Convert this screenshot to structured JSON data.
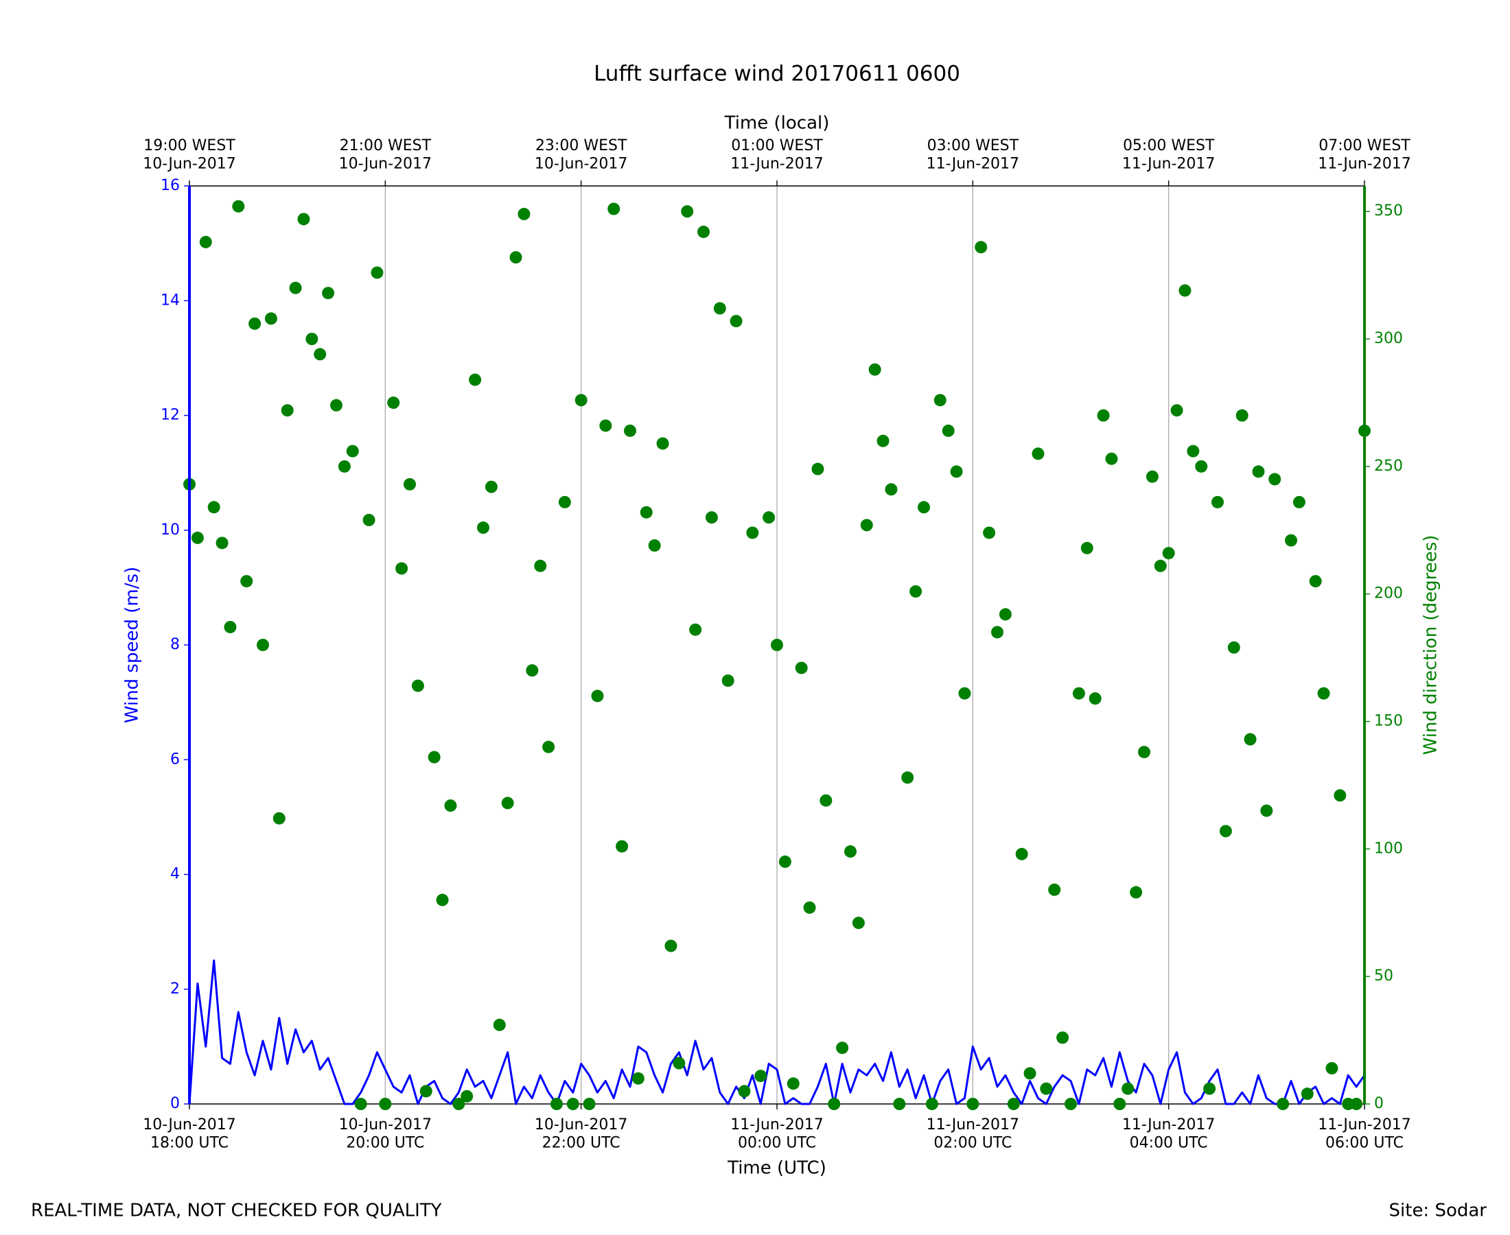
{
  "chart_data": {
    "type": "line+scatter",
    "title": "Lufft surface wind 20170611 0600",
    "xlabel": "Time (UTC)",
    "x2label": "Time (local)",
    "ylabel": "Wind speed (m/s)",
    "y2label": "Wind direction (degrees)",
    "footer_left": "REAL-TIME DATA, NOT CHECKED FOR QUALITY",
    "footer_right": "Site: Sodar",
    "xlim": [
      "2017-06-10T18:00",
      "2017-06-11T06:00"
    ],
    "xticks": [
      {
        "value": "2017-06-10T18:00",
        "label": "10-Jun-2017\n18:00 UTC"
      },
      {
        "value": "2017-06-10T20:00",
        "label": "10-Jun-2017\n20:00 UTC"
      },
      {
        "value": "2017-06-10T22:00",
        "label": "10-Jun-2017\n22:00 UTC"
      },
      {
        "value": "2017-06-11T00:00",
        "label": "11-Jun-2017\n00:00 UTC"
      },
      {
        "value": "2017-06-11T02:00",
        "label": "11-Jun-2017\n02:00 UTC"
      },
      {
        "value": "2017-06-11T04:00",
        "label": "11-Jun-2017\n04:00 UTC"
      },
      {
        "value": "2017-06-11T06:00",
        "label": "11-Jun-2017\n06:00 UTC"
      }
    ],
    "x2ticks": [
      {
        "value": "2017-06-10T18:00",
        "label": "19:00 WEST\n10-Jun-2017"
      },
      {
        "value": "2017-06-10T20:00",
        "label": "21:00 WEST\n10-Jun-2017"
      },
      {
        "value": "2017-06-10T22:00",
        "label": "23:00 WEST\n10-Jun-2017"
      },
      {
        "value": "2017-06-11T00:00",
        "label": "01:00 WEST\n11-Jun-2017"
      },
      {
        "value": "2017-06-11T02:00",
        "label": "03:00 WEST\n11-Jun-2017"
      },
      {
        "value": "2017-06-11T04:00",
        "label": "05:00 WEST\n11-Jun-2017"
      },
      {
        "value": "2017-06-11T06:00",
        "label": "07:00 WEST\n11-Jun-2017"
      }
    ],
    "ylim": [
      0,
      16
    ],
    "yticks": [
      0,
      2,
      4,
      6,
      8,
      10,
      12,
      14,
      16
    ],
    "y2lim": [
      0,
      360
    ],
    "y2ticks": [
      0,
      50,
      100,
      150,
      200,
      250,
      300,
      350
    ],
    "grid": true,
    "x": [
      "2017-06-10T18:00",
      "2017-06-10T18:05",
      "2017-06-10T18:10",
      "2017-06-10T18:15",
      "2017-06-10T18:20",
      "2017-06-10T18:25",
      "2017-06-10T18:30",
      "2017-06-10T18:35",
      "2017-06-10T18:40",
      "2017-06-10T18:45",
      "2017-06-10T18:50",
      "2017-06-10T18:55",
      "2017-06-10T19:00",
      "2017-06-10T19:05",
      "2017-06-10T19:10",
      "2017-06-10T19:15",
      "2017-06-10T19:20",
      "2017-06-10T19:25",
      "2017-06-10T19:30",
      "2017-06-10T19:35",
      "2017-06-10T19:40",
      "2017-06-10T19:45",
      "2017-06-10T19:50",
      "2017-06-10T19:55",
      "2017-06-10T20:00",
      "2017-06-10T20:05",
      "2017-06-10T20:10",
      "2017-06-10T20:15",
      "2017-06-10T20:20",
      "2017-06-10T20:25",
      "2017-06-10T20:30",
      "2017-06-10T20:35",
      "2017-06-10T20:40",
      "2017-06-10T20:45",
      "2017-06-10T20:50",
      "2017-06-10T20:55",
      "2017-06-10T21:00",
      "2017-06-10T21:05",
      "2017-06-10T21:10",
      "2017-06-10T21:15",
      "2017-06-10T21:20",
      "2017-06-10T21:25",
      "2017-06-10T21:30",
      "2017-06-10T21:35",
      "2017-06-10T21:40",
      "2017-06-10T21:45",
      "2017-06-10T21:50",
      "2017-06-10T21:55",
      "2017-06-10T22:00",
      "2017-06-10T22:05",
      "2017-06-10T22:10",
      "2017-06-10T22:15",
      "2017-06-10T22:20",
      "2017-06-10T22:25",
      "2017-06-10T22:30",
      "2017-06-10T22:35",
      "2017-06-10T22:40",
      "2017-06-10T22:45",
      "2017-06-10T22:50",
      "2017-06-10T22:55",
      "2017-06-10T23:00",
      "2017-06-10T23:05",
      "2017-06-10T23:10",
      "2017-06-10T23:15",
      "2017-06-10T23:20",
      "2017-06-10T23:25",
      "2017-06-10T23:30",
      "2017-06-10T23:35",
      "2017-06-10T23:40",
      "2017-06-10T23:45",
      "2017-06-10T23:50",
      "2017-06-10T23:55",
      "2017-06-11T00:00",
      "2017-06-11T00:05",
      "2017-06-11T00:10",
      "2017-06-11T00:15",
      "2017-06-11T00:20",
      "2017-06-11T00:25",
      "2017-06-11T00:30",
      "2017-06-11T00:35",
      "2017-06-11T00:40",
      "2017-06-11T00:45",
      "2017-06-11T00:50",
      "2017-06-11T00:55",
      "2017-06-11T01:00",
      "2017-06-11T01:05",
      "2017-06-11T01:10",
      "2017-06-11T01:15",
      "2017-06-11T01:20",
      "2017-06-11T01:25",
      "2017-06-11T01:30",
      "2017-06-11T01:35",
      "2017-06-11T01:40",
      "2017-06-11T01:45",
      "2017-06-11T01:50",
      "2017-06-11T01:55",
      "2017-06-11T02:00",
      "2017-06-11T02:05",
      "2017-06-11T02:10",
      "2017-06-11T02:15",
      "2017-06-11T02:20",
      "2017-06-11T02:25",
      "2017-06-11T02:30",
      "2017-06-11T02:35",
      "2017-06-11T02:40",
      "2017-06-11T02:45",
      "2017-06-11T02:50",
      "2017-06-11T02:55",
      "2017-06-11T03:00",
      "2017-06-11T03:05",
      "2017-06-11T03:10",
      "2017-06-11T03:15",
      "2017-06-11T03:20",
      "2017-06-11T03:25",
      "2017-06-11T03:30",
      "2017-06-11T03:35",
      "2017-06-11T03:40",
      "2017-06-11T03:45",
      "2017-06-11T03:50",
      "2017-06-11T03:55",
      "2017-06-11T04:00",
      "2017-06-11T04:05",
      "2017-06-11T04:10",
      "2017-06-11T04:15",
      "2017-06-11T04:20",
      "2017-06-11T04:25",
      "2017-06-11T04:30",
      "2017-06-11T04:35",
      "2017-06-11T04:40",
      "2017-06-11T04:45",
      "2017-06-11T04:50",
      "2017-06-11T04:55",
      "2017-06-11T05:00",
      "2017-06-11T05:05",
      "2017-06-11T05:10",
      "2017-06-11T05:15",
      "2017-06-11T05:20",
      "2017-06-11T05:25",
      "2017-06-11T05:30",
      "2017-06-11T05:35",
      "2017-06-11T05:40",
      "2017-06-11T05:45",
      "2017-06-11T05:50",
      "2017-06-11T05:55",
      "2017-06-11T06:00"
    ],
    "series": [
      {
        "name": "Wind speed",
        "color": "#0000ff",
        "kind": "line",
        "values": [
          0,
          2.1,
          1.0,
          2.5,
          0.8,
          0.7,
          1.6,
          0.9,
          0.5,
          1.1,
          0.6,
          1.5,
          0.7,
          1.3,
          0.9,
          1.1,
          0.6,
          0.8,
          0.4,
          0,
          0,
          0.2,
          0.5,
          0.9,
          0.6,
          0.3,
          0.2,
          0.5,
          0,
          0.3,
          0.4,
          0.1,
          0,
          0.2,
          0.6,
          0.3,
          0.4,
          0.1,
          0.5,
          0.9,
          0,
          0.3,
          0.1,
          0.5,
          0.2,
          0,
          0.4,
          0.2,
          0.7,
          0.5,
          0.2,
          0.4,
          0.1,
          0.6,
          0.3,
          1.0,
          0.9,
          0.5,
          0.2,
          0.7,
          0.9,
          0.5,
          1.1,
          0.6,
          0.8,
          0.2,
          0,
          0.3,
          0.1,
          0.5,
          0,
          0.7,
          0.6,
          0,
          0.1,
          0,
          0,
          0.3,
          0.7,
          0,
          0.7,
          0.2,
          0.6,
          0.5,
          0.7,
          0.4,
          0.9,
          0.3,
          0.6,
          0.1,
          0.5,
          0,
          0.4,
          0.6,
          0,
          0.1,
          1.0,
          0.6,
          0.8,
          0.3,
          0.5,
          0.2,
          0,
          0.4,
          0.1,
          0,
          0.3,
          0.5,
          0.4,
          0,
          0.6,
          0.5,
          0.8,
          0.3,
          0.9,
          0.4,
          0.2,
          0.7,
          0.5,
          0,
          0.6,
          0.9,
          0.2,
          0,
          0.1,
          0.4,
          0.6,
          0,
          0,
          0.2,
          0,
          0.5,
          0.1,
          0,
          0,
          0.4,
          0,
          0.2,
          0.3,
          0,
          0.1,
          0,
          0.5,
          0.3,
          0.5
        ]
      },
      {
        "name": "Wind direction",
        "color": "#008000",
        "kind": "scatter",
        "axis": "y2",
        "values": [
          243,
          222,
          338,
          234,
          220,
          187,
          352,
          205,
          306,
          180,
          308,
          112,
          272,
          320,
          347,
          300,
          294,
          318,
          274,
          250,
          256,
          0,
          229,
          326,
          0,
          275,
          210,
          243,
          164,
          5,
          136,
          80,
          117,
          0,
          3,
          284,
          226,
          242,
          31,
          118,
          332,
          349,
          170,
          211,
          140,
          0,
          236,
          0,
          276,
          0,
          160,
          266,
          351,
          101,
          264,
          10,
          232,
          219,
          259,
          62,
          16,
          350,
          186,
          342,
          230,
          312,
          166,
          307,
          5,
          224,
          11,
          230,
          180,
          95,
          8,
          171,
          77,
          249,
          119,
          0,
          22,
          99,
          71,
          227,
          288,
          260,
          241,
          0,
          128,
          201,
          234,
          0,
          276,
          264,
          248,
          161,
          0,
          336,
          224,
          185,
          192,
          0,
          98,
          12,
          255,
          6,
          84,
          26,
          0,
          161,
          218,
          159,
          270,
          253,
          0,
          6,
          83,
          138,
          246,
          211,
          216,
          272,
          319,
          256,
          250,
          6,
          236,
          107,
          179,
          270,
          143,
          248,
          115,
          245,
          0,
          221,
          236,
          4,
          205,
          161,
          14,
          121,
          0,
          0,
          264
        ]
      }
    ]
  }
}
